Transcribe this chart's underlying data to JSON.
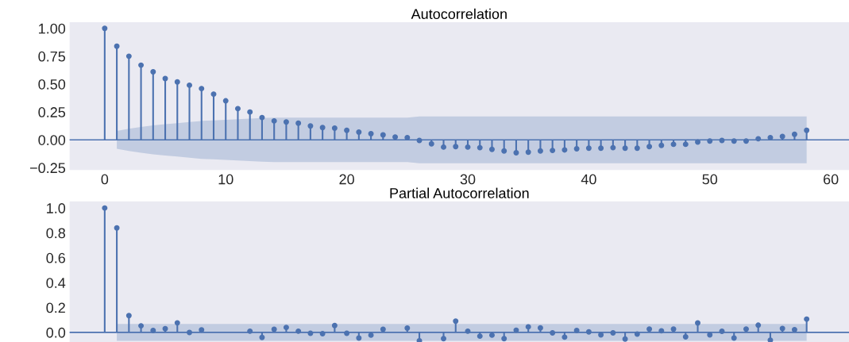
{
  "chart_data": [
    {
      "type": "lollipop",
      "title": "Autocorrelation",
      "x": [
        0,
        1,
        2,
        3,
        4,
        5,
        6,
        7,
        8,
        9,
        10,
        11,
        12,
        13,
        14,
        15,
        16,
        17,
        18,
        19,
        20,
        21,
        22,
        23,
        24,
        25,
        26,
        27,
        28,
        29,
        30,
        31,
        32,
        33,
        34,
        35,
        36,
        37,
        38,
        39,
        40,
        41,
        42,
        43,
        44,
        45,
        46,
        47,
        48,
        49,
        50,
        51,
        52,
        53,
        54,
        55,
        56,
        57,
        58
      ],
      "series": [
        {
          "color": "#4c72b0",
          "values": [
            1.0,
            0.84,
            0.75,
            0.67,
            0.61,
            0.55,
            0.52,
            0.49,
            0.46,
            0.41,
            0.35,
            0.28,
            0.25,
            0.2,
            0.17,
            0.16,
            0.15,
            0.125,
            0.11,
            0.105,
            0.085,
            0.07,
            0.055,
            0.045,
            0.025,
            0.02,
            -0.005,
            -0.035,
            -0.065,
            -0.06,
            -0.065,
            -0.07,
            -0.085,
            -0.1,
            -0.115,
            -0.11,
            -0.1,
            -0.095,
            -0.09,
            -0.08,
            -0.075,
            -0.075,
            -0.07,
            -0.075,
            -0.075,
            -0.06,
            -0.05,
            -0.04,
            -0.04,
            -0.02,
            -0.01,
            -0.005,
            -0.01,
            -0.01,
            0.01,
            0.02,
            0.03,
            0.05,
            0.085
          ],
          "upper": [
            null,
            0.08,
            0.1,
            0.115,
            0.13,
            0.14,
            0.15,
            0.16,
            0.17,
            0.175,
            0.18,
            0.185,
            0.19,
            0.195,
            0.2,
            0.2,
            0.2,
            0.2,
            0.2,
            0.2,
            0.2,
            0.2,
            0.2,
            0.2,
            0.2,
            0.2,
            0.21,
            0.21,
            0.21,
            0.21,
            0.21,
            0.21,
            0.21,
            0.21,
            0.21,
            0.21,
            0.21,
            0.21,
            0.21,
            0.21,
            0.21,
            0.21,
            0.21,
            0.21,
            0.21,
            0.21,
            0.21,
            0.21,
            0.21,
            0.21,
            0.21,
            0.21,
            0.21,
            0.21,
            0.21,
            0.21,
            0.21,
            0.21,
            0.21
          ],
          "lower": [
            null,
            -0.08,
            -0.1,
            -0.115,
            -0.13,
            -0.14,
            -0.15,
            -0.16,
            -0.17,
            -0.175,
            -0.18,
            -0.185,
            -0.19,
            -0.195,
            -0.2,
            -0.2,
            -0.2,
            -0.2,
            -0.2,
            -0.2,
            -0.2,
            -0.2,
            -0.2,
            -0.2,
            -0.2,
            -0.2,
            -0.21,
            -0.21,
            -0.21,
            -0.21,
            -0.21,
            -0.21,
            -0.21,
            -0.21,
            -0.21,
            -0.21,
            -0.21,
            -0.21,
            -0.21,
            -0.21,
            -0.21,
            -0.21,
            -0.21,
            -0.21,
            -0.21,
            -0.21,
            -0.21,
            -0.21,
            -0.21,
            -0.21,
            -0.21,
            -0.21,
            -0.21,
            -0.21,
            -0.21,
            -0.21,
            -0.21,
            -0.21,
            -0.21
          ]
        }
      ],
      "xlim": [
        -2.9,
        61.5
      ],
      "xticks": [
        0,
        10,
        20,
        30,
        40,
        50,
        60
      ],
      "ylim": [
        -0.27,
        1.055
      ],
      "yticks": [
        {
          "value": -0.25,
          "label": "−0.25"
        },
        {
          "value": 0.0,
          "label": "0.00"
        },
        {
          "value": 0.25,
          "label": "0.25"
        },
        {
          "value": 0.5,
          "label": "0.50"
        },
        {
          "value": 0.75,
          "label": "0.75"
        },
        {
          "value": 1.0,
          "label": "1.00"
        }
      ],
      "ref_lines": [
        {
          "axis": "y",
          "value": 0,
          "color": "#4c72b0"
        }
      ],
      "marker": "circle",
      "grid": false
    },
    {
      "type": "lollipop",
      "title": "Partial Autocorrelation",
      "x": [
        0,
        1,
        2,
        3,
        4,
        5,
        6,
        7,
        8,
        9,
        10,
        11,
        12,
        13,
        14,
        15,
        16,
        17,
        18,
        19,
        20,
        21,
        22,
        23,
        24,
        25,
        26,
        27,
        28,
        29,
        30,
        31,
        32,
        33,
        34,
        35,
        36,
        37,
        38,
        39,
        40,
        41,
        42,
        43,
        44,
        45,
        46,
        47,
        48,
        49,
        50,
        51,
        52,
        53,
        54,
        55,
        56,
        57,
        58
      ],
      "series": [
        {
          "color": "#4c72b0",
          "values": [
            1.0,
            0.84,
            0.135,
            0.053,
            0.015,
            0.03,
            0.077,
            0.0,
            0.02,
            null,
            null,
            null,
            0.01,
            -0.04,
            0.025,
            0.04,
            0.01,
            -0.007,
            -0.01,
            0.055,
            -0.007,
            -0.045,
            -0.022,
            0.025,
            null,
            0.035,
            -0.067,
            null,
            -0.05,
            0.09,
            0.01,
            -0.03,
            -0.022,
            -0.05,
            0.018,
            0.045,
            0.036,
            -0.004,
            -0.038,
            0.016,
            0.004,
            -0.02,
            -0.004,
            -0.053,
            -0.013,
            0.027,
            0.013,
            0.027,
            -0.036,
            0.076,
            -0.02,
            0.009,
            -0.045,
            0.027,
            0.058,
            -0.062,
            0.031,
            0.022,
            0.107
          ],
          "upper": [
            null,
            0.068,
            0.068,
            0.068,
            0.068,
            0.068,
            0.068,
            0.068,
            0.068,
            0.068,
            0.068,
            0.068,
            0.068,
            0.068,
            0.068,
            0.068,
            0.068,
            0.068,
            0.068,
            0.068,
            0.068,
            0.068,
            0.068,
            0.068,
            0.068,
            0.068,
            0.068,
            0.068,
            0.068,
            0.068,
            0.068,
            0.068,
            0.068,
            0.068,
            0.068,
            0.068,
            0.068,
            0.068,
            0.068,
            0.068,
            0.068,
            0.068,
            0.068,
            0.068,
            0.068,
            0.068,
            0.068,
            0.068,
            0.068,
            0.068,
            0.068,
            0.068,
            0.068,
            0.068,
            0.068,
            0.068,
            0.068,
            0.068,
            0.068
          ],
          "lower": [
            null,
            -0.068,
            -0.068,
            -0.068,
            -0.068,
            -0.068,
            -0.068,
            -0.068,
            -0.068,
            -0.068,
            -0.068,
            -0.068,
            -0.068,
            -0.068,
            -0.068,
            -0.068,
            -0.068,
            -0.068,
            -0.068,
            -0.068,
            -0.068,
            -0.068,
            -0.068,
            -0.068,
            -0.068,
            -0.068,
            -0.068,
            -0.068,
            -0.068,
            -0.068,
            -0.068,
            -0.068,
            -0.068,
            -0.068,
            -0.068,
            -0.068,
            -0.068,
            -0.068,
            -0.068,
            -0.068,
            -0.068,
            -0.068,
            -0.068,
            -0.068,
            -0.068,
            -0.068,
            -0.068,
            -0.068,
            -0.068,
            -0.068,
            -0.068,
            -0.068,
            -0.068,
            -0.068,
            -0.068,
            -0.068,
            -0.068,
            -0.068,
            -0.068
          ]
        }
      ],
      "xlim": [
        -2.9,
        61.5
      ],
      "tick_labels": "y",
      "ylim": [
        -0.077,
        1.053
      ],
      "yticks": [
        {
          "value": 0.0,
          "label": "0.0"
        },
        {
          "value": 0.2,
          "label": "0.2"
        },
        {
          "value": 0.4,
          "label": "0.4"
        },
        {
          "value": 0.6,
          "label": "0.6"
        },
        {
          "value": 0.8,
          "label": "0.8"
        },
        {
          "value": 1.0,
          "label": "1.0"
        }
      ],
      "ref_lines": [
        {
          "axis": "y",
          "value": 0,
          "color": "#4c72b0"
        }
      ],
      "marker": "circle",
      "grid": false
    }
  ]
}
